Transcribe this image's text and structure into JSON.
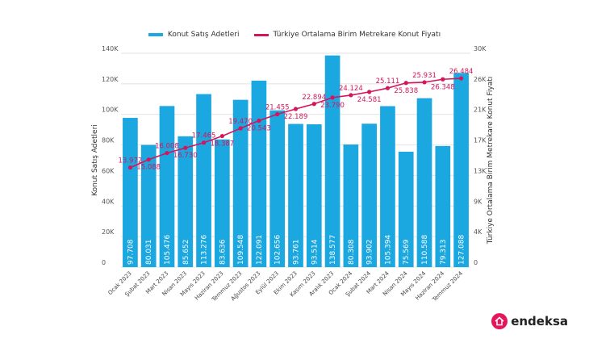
{
  "chart_data": {
    "type": "bar+line",
    "legend": {
      "bar_label": "Konut Satış Adetleri",
      "line_label": "Türkiye Ortalama Birim Metrekare Konut Fiyatı"
    },
    "y_left_label": "Konut Satış Adetleri",
    "y_right_label": "Türkiye Ortalama Birim Metrekare Konut Fiyatı",
    "y_left_ticks": [
      "0",
      "20K",
      "40K",
      "60K",
      "80K",
      "100K",
      "120K",
      "140K"
    ],
    "y_left_tick_values": [
      0,
      20000,
      40000,
      60000,
      80000,
      100000,
      120000,
      140000
    ],
    "y_right_ticks": [
      "0",
      "4K",
      "9K",
      "13K",
      "17K",
      "21K",
      "26K",
      "30K"
    ],
    "y_left_range": [
      0,
      140000
    ],
    "y_right_range": [
      0,
      30000
    ],
    "categories": [
      "Ocak 2023",
      "Şubat 2023",
      "Mart 2023",
      "Nisan 2023",
      "Mayıs 2023",
      "Haziran 2023",
      "Temmuz 2023",
      "Ağustos 2023",
      "Eylül 2023",
      "Ekim 2023",
      "Kasım 2023",
      "Aralık 2023",
      "Ocak 2024",
      "Şubat 2024",
      "Mart 2024",
      "Nisan 2024",
      "Mayıs 2024",
      "Haziran 2024",
      "Temmuz 2024"
    ],
    "series": [
      {
        "name": "Konut Satış Adetleri",
        "axis": "left",
        "values": [
          97708,
          80031,
          105476,
          85652,
          113276,
          83636,
          109548,
          122091,
          102656,
          93761,
          93514,
          138577,
          80308,
          93902,
          105394,
          75569,
          110588,
          79313,
          127088
        ],
        "labels": [
          "97.708",
          "80.031",
          "105.476",
          "85.652",
          "113.276",
          "83.636",
          "109.548",
          "122.091",
          "102.656",
          "93.761",
          "93.514",
          "138.577",
          "80.308",
          "93.902",
          "105.394",
          "75.569",
          "110.588",
          "79.313",
          "127.088"
        ]
      },
      {
        "name": "Türkiye Ortalama Birim Metrekare Konut Fiyatı",
        "axis": "right",
        "values": [
          13972,
          15088,
          16008,
          16730,
          17465,
          18387,
          19470,
          20543,
          21455,
          22189,
          22894,
          23790,
          24124,
          24581,
          25111,
          25838,
          25931,
          26348,
          26484
        ],
        "labels": [
          "13.972",
          "15.088",
          "16.008",
          "16.730",
          "17.465",
          "18.387",
          "19.470",
          "20.543",
          "21.455",
          "22.189",
          "22.894",
          "23.790",
          "24.124",
          "24.581",
          "25.111",
          "25.838",
          "25.931",
          "26.348",
          "26.484"
        ]
      }
    ],
    "colors": {
      "bar": "#1ba7e0",
      "line": "#d4155b",
      "grid": "#e2e2e2"
    }
  },
  "brand": {
    "name": "endeksa"
  }
}
